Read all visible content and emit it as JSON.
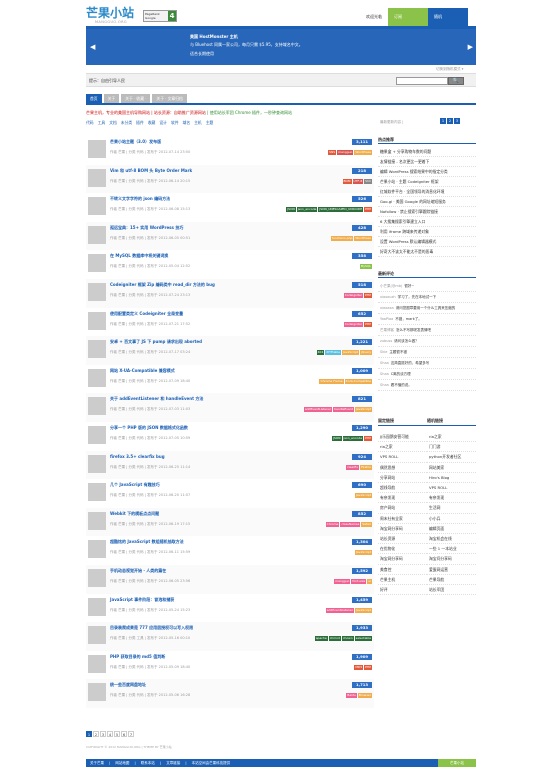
{
  "logo": {
    "name": "芒果小站",
    "sub": "MANGGUO.ORG"
  },
  "pagerank": {
    "label": "PageRank Google",
    "value": "4"
  },
  "top_links": [
    "欢迎光临",
    "订阅",
    "随机"
  ],
  "banner": {
    "prev": "◀",
    "next": "▶",
    "line1": "美国 HostMonster 主机",
    "line2": "与 Bluehost 同属一家公司，每月只需 $5.95，支持域名中文。",
    "line3": "适合长期使用",
    "switch": "切换到随机模式 ▾"
  },
  "search": {
    "label": "提示：自由引导人民",
    "placeholder": "",
    "button": "🔍"
  },
  "tabs": [
    "首页",
    "关于",
    "关于 · 收藏 ·",
    "关于 · 文章归档"
  ],
  "notice": {
    "red": "芒果主机，专业的美国主机导购网站 | 站长资源：自助推广资源网站",
    "green": " | 使用站长军团 Chrome 插件，一秒钟查询网站"
  },
  "latest_label": "最新更新内容 | ",
  "pages_top": [
    "1",
    "2",
    "3"
  ],
  "categories": [
    "代码",
    "工具",
    "文档",
    "未分类",
    "插件",
    "收藏",
    "设计",
    "软件",
    "域名",
    "主机",
    "主题"
  ],
  "posts": [
    {
      "title": "芒果小站主题（3.0）发布版",
      "meta": "作者 芒果 | 分类 代码 | 发布于 2012-07-14 23:50",
      "count": "3,111",
      "tags": [
        [
          "SNS",
          "#e25a3a"
        ],
        [
          "mangguo",
          "#d9534f"
        ],
        [
          "WordPress",
          "#f0ad4e"
        ]
      ]
    },
    {
      "title": "Vim 和 utf-8 BOM 头 Byte Order Mark",
      "meta": "作者 芒果 | 分类 代码 | 发布于 2012-06-14 20:15",
      "count": "218",
      "tags": [
        [
          "BOM",
          "#e25a3a"
        ],
        [
          "UTF-8",
          "#d9534f"
        ],
        [
          "Vim",
          "#888"
        ]
      ]
    },
    {
      "title": "不转义文字字符的 json 编码方法",
      "meta": "作者 芒果 | 分类 代码 | 发布于 2012-06-08 15:13",
      "count": "526",
      "tags": [
        [
          "JSON",
          "#2b6e3a"
        ],
        [
          "json_encode",
          "#2b6e3a"
        ],
        [
          "JSON_UNESCAPED_UNICODE",
          "#2b6e3a"
        ],
        [
          "PHP",
          "#e25a3a"
        ]
      ]
    },
    {
      "title": "孤远宝典：15+ 实用 WordPress 技巧",
      "meta": "作者 芒果 | 分类 代码 | 发布于 2012-06-05 00:51",
      "count": "428",
      "tags": [
        [
          "functions.php",
          "#f0ad4e"
        ],
        [
          "WordPress",
          "#f0ad4e"
        ]
      ]
    },
    {
      "title": "在 MySQL 数据库中将关键词换",
      "meta": "作者 芒果 | 分类 代码 | 发布于 2012-05-04 12:52",
      "count": "358",
      "tags": [
        [
          "MySQL",
          "#8bc34a"
        ]
      ]
    },
    {
      "title": "Codeigniter 框架 Zip 编码类中 read_dir 方法的 bug",
      "meta": "作者 芒果 | 分类 代码 | 发布于 2012-07-24 23:13",
      "count": "518",
      "tags": [
        [
          "Codeigniter",
          "#f06292"
        ],
        [
          "PHP",
          "#e25a3a"
        ]
      ]
    },
    {
      "title": "使用配置类定义 Codeigniter 全局变量",
      "meta": "作者 芒果 | 分类 代码 | 发布于 2012-07-21 17:52",
      "count": "652",
      "tags": [
        [
          "Codeigniter",
          "#f06292"
        ],
        [
          "PHP",
          "#e25a3a"
        ]
      ]
    },
    {
      "title": "安卓 + 百文事了 JS 下 pump 请求出现 aborted",
      "meta": "作者 芒果 | 分类 代码 | 发布于 2012-07-17 03:24",
      "count": "1,221",
      "tags": [
        [
          "404",
          "#2b6e3a"
        ],
        [
          "XHTtable",
          "#5bc0de"
        ],
        [
          "JavaScript",
          "#f0ad4e"
        ],
        [
          "jQuery",
          "#f0ad4e"
        ]
      ]
    },
    {
      "title": "网站 X-UA-Compatible 兼容模式",
      "meta": "作者 芒果 | 分类 代码 | 发布于 2012-07-09 18:40",
      "count": "1,009",
      "tags": [
        [
          "Chrome Frame",
          "#f0ad4e"
        ],
        [
          "X-UA-Compatible",
          "#f0ad4e"
        ]
      ]
    },
    {
      "title": "关于 addEventListener 和 handleEvent 方法",
      "meta": "作者 芒果 | 分类 代码 | 发布于 2012-07-03 11:03",
      "count": "821",
      "tags": [
        [
          "addEventListener",
          "#f06292"
        ],
        [
          "handleEvent",
          "#f06292"
        ],
        [
          "JavaScript",
          "#f0ad4e"
        ]
      ]
    },
    {
      "title": "分享一个 PHP 版的 JSON 数据格式化函数",
      "meta": "作者 芒果 | 分类 代码 | 发布于 2012-07-05 10:59",
      "count": "1,290",
      "tags": [
        [
          "JSON",
          "#2b6e3a"
        ],
        [
          "json_encode",
          "#2b6e3a"
        ],
        [
          "PHP",
          "#e25a3a"
        ]
      ]
    },
    {
      "title": "firefox 3.5+ clearfix bug",
      "meta": "作者 芒果 | 分类 代码 | 发布于 2012-06-25 11:14",
      "count": "924",
      "tags": [
        [
          "clearfix",
          "#f06292"
        ],
        [
          "Firefox",
          "#f0ad4e"
        ]
      ]
    },
    {
      "title": "几个 JavaScript 有趣技巧",
      "meta": "作者 芒果 | 分类 代码 | 发布于 2012-06-20 11:07",
      "count": "690",
      "tags": [
        [
          "JavaScript",
          "#f0ad4e"
        ]
      ]
    },
    {
      "title": "Webkit 下的模板点点问题",
      "meta": "作者 芒果 | 分类 代码 | 发布于 2012-06-19 17:15",
      "count": "852",
      "tags": [
        [
          "Chrome",
          "#f06292"
        ],
        [
          "classNames",
          "#f06292"
        ],
        [
          "Safari",
          "#f0ad4e"
        ]
      ]
    },
    {
      "title": "超酷炫的 JavaScript 数组随机抽取方法",
      "meta": "作者 芒果 | 分类 代码 | 发布于 2012-06-11 15:59",
      "count": "1,304",
      "tags": [
        [
          "JavaScript",
          "#f0ad4e"
        ]
      ]
    },
    {
      "title": "手机动态视觉开始 · 人类的篇在",
      "meta": "作者 芒果 | 分类 代码 | 发布于 2012-06-05 23:56",
      "count": "1,592",
      "tags": [
        [
          "mangguo",
          "#f06292"
        ],
        [
          "font-size",
          "#f06292"
        ],
        [
          "ui",
          "#f0ad4e"
        ]
      ]
    },
    {
      "title": "JavaScript 事件阶段：冒泡和捕获",
      "meta": "作者 芒果 | 分类 代码 | 发布于 2012-05-24 15:23",
      "count": "1,459",
      "tags": [
        [
          "addEventListener",
          "#f06292"
        ],
        [
          "JavaScript",
          "#f0ad4e"
        ]
      ]
    },
    {
      "title": "目录装爬成果是 777 应用层授权可以写入权限",
      "meta": "作者 芒果 | 分类 工具 | 发布于 2012-05-16 00:10",
      "count": "1,933",
      "tags": [
        [
          "apache",
          "#2b6e3a"
        ],
        [
          "chmod",
          "#2b6e3a"
        ],
        [
          "chown",
          "#2b6e3a"
        ],
        [
          "selectable",
          "#2b6e3a"
        ]
      ]
    },
    {
      "title": "PHP 获取目录的 md5 值判断",
      "meta": "作者 芒果 | 分类 代码 | 发布于 2012-05-09 18:40",
      "count": "1,909",
      "tags": [
        [
          "MD5",
          "#e25a3a"
        ],
        [
          "PHP",
          "#e25a3a"
        ]
      ]
    },
    {
      "title": "统一些百度网盘地址",
      "meta": "作者 芒果 | 分类 代码 | 发布于 2012-05-06 16:28",
      "count": "1,713",
      "tags": [
        [
          "Baidu",
          "#f06292"
        ],
        [
          "Browser",
          "#f0ad4e"
        ]
      ]
    }
  ],
  "pager": [
    "1",
    "2",
    "3",
    "4",
    "5",
    "6",
    "7"
  ],
  "copyright": "COPYRIGHT © 2012 MANGGUO.ORG | THEME BY 芒果小站",
  "footer": {
    "links": "关于芒果 | 网站地图 | 联系本站 | 文章链接 | 本站空间由芒果科技提供",
    "right": "芒果小站"
  },
  "sidebar": {
    "hot_title": "热点推荐",
    "hot": [
      "糖果盒 + 分享购物车数的问题",
      "友情链接 - 名次更比一更着下",
      "编辑 WordPress 搜索结果中的指定分类",
      "芒果小站 · 主题 CodeIgniter 框架",
      "红城软件平台 · 全国领导的消息化环境",
      "Goo.gl · 美国 Google 的网址缩短服务",
      "Nofollow · 禁止搜索引擎跟踪链接",
      "6 大搜集搜索引擎建立入口",
      "利用 iframe 跨域来传递对象",
      "设置 WordPress 默认编辑器模式",
      "好奇大不该太不能太不是的恶毒"
    ],
    "comment_title": "最新评论",
    "comments": [
      [
        "小芒果(@mb)",
        "很好~"
      ],
      [
        "xiaoxuzh",
        "学习了，先在本地试一下"
      ],
      [
        "xiaoaxa",
        "请问您图章要用一个什么工具来压缩的"
      ],
      [
        "YaaPiaa",
        "不错，mark了。"
      ],
      [
        "芒果博客",
        "怎么不写那呢发表情吧"
      ],
      [
        "zubuss",
        "请问该怎么做？"
      ],
      [
        "Skie",
        "主题很不错"
      ],
      [
        "Shaa",
        "这简直挺好的，希望多写"
      ],
      [
        "Shaa",
        "C离的谈方理"
      ],
      [
        "Shaa",
        "看不懂的说。"
      ]
    ],
    "friends_title": "固定链接",
    "links_title": "随机链接",
    "links": [
      "JJ乐园鹅安营可能",
      "ria之家",
      "ria之家",
      "门门游",
      "VPS ROLL",
      "python开发者社区",
      "偶然思想",
      "网站美家",
      "分享网站",
      "Hiro's Blog",
      "超线导航",
      "VPS ROLL",
      "有奈发现",
      "有奈发现",
      "房产网站",
      "生活网",
      "周末社有全家",
      "小小兵",
      "淘宝网分享码",
      "编辑页面",
      "站长资源",
      "淘宝机会在线",
      "在优物化",
      "一些 1 一本站业",
      "淘宝网分享码",
      "淘宝问分享码",
      "美食控",
      "爱蛋网运营",
      "芒果主机",
      "芒果导航",
      "好评",
      "站长军团"
    ]
  }
}
